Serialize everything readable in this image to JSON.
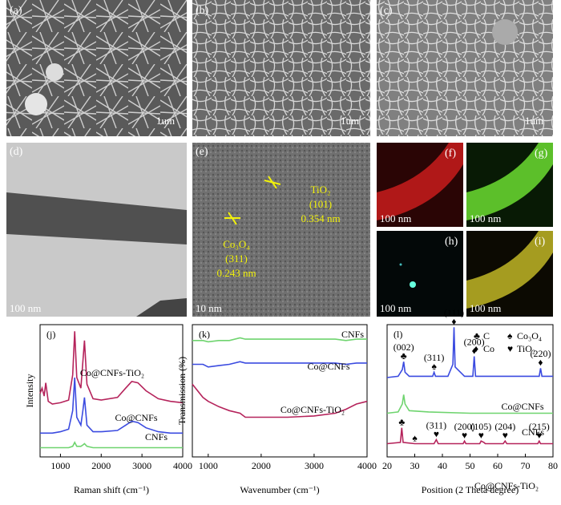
{
  "image_panels": [
    {
      "label": "(a)",
      "scale_bar": "1um"
    },
    {
      "label": "(b)",
      "scale_bar": "1um"
    },
    {
      "label": "(c)",
      "scale_bar": "1um"
    },
    {
      "label": "(d)",
      "scale_bar": "100 nm"
    },
    {
      "label": "(e)",
      "scale_bar": "10 nm"
    },
    {
      "label": "(f)",
      "scale_bar": "100 nm"
    },
    {
      "label": "(g)",
      "scale_bar": "100 nm"
    },
    {
      "label": "(h)",
      "scale_bar": "100 nm"
    },
    {
      "label": "(i)",
      "scale_bar": "100 nm"
    }
  ],
  "tem_annotations": {
    "tio2": [
      "TiO₂",
      "(101)",
      "0.354 nm"
    ],
    "co3o4": [
      "Co₃O₄",
      "(311)",
      "0.243 nm"
    ]
  },
  "chart_data": [
    {
      "type": "line",
      "panel_label": "(j)",
      "xlabel": "Raman shift (cm⁻¹)",
      "ylabel": "Intensity",
      "x": [
        500,
        550,
        600,
        640,
        700,
        800,
        1000,
        1200,
        1300,
        1350,
        1400,
        1500,
        1550,
        1590,
        1650,
        1800,
        2000,
        2400,
        2600,
        2750,
        2900,
        3100,
        3400,
        3700,
        4000
      ],
      "xlim": [
        500,
        4000
      ],
      "xticks": [
        1000,
        2000,
        3000,
        4000
      ],
      "ylim": [
        0,
        100
      ],
      "series": [
        {
          "name": "CNFs",
          "color": "#6fd46f",
          "values": [
            7,
            7,
            7,
            7,
            7,
            7,
            7,
            7,
            8,
            11,
            8,
            8,
            9,
            10,
            8,
            7,
            7,
            7,
            7,
            7,
            7,
            7,
            7,
            7,
            7
          ]
        },
        {
          "name": "Co@CNFs",
          "color": "#3b4be0",
          "values": [
            18,
            18,
            18,
            18,
            18,
            18,
            19,
            21,
            35,
            60,
            30,
            24,
            35,
            45,
            24,
            19,
            19,
            20,
            24,
            27,
            26,
            22,
            19,
            18,
            18
          ]
        },
        {
          "name": "Co@CNFs-TiO₂",
          "color": "#b5235b",
          "values": [
            48,
            52,
            46,
            56,
            42,
            40,
            41,
            43,
            62,
            95,
            60,
            52,
            72,
            88,
            55,
            44,
            43,
            45,
            52,
            57,
            56,
            50,
            44,
            42,
            41
          ]
        }
      ]
    },
    {
      "type": "line",
      "panel_label": "(k)",
      "xlabel": "Wavenumber (cm⁻¹)",
      "ylabel": "Transmission (%)",
      "x": [
        700,
        900,
        1000,
        1200,
        1400,
        1600,
        1700,
        1800,
        2000,
        2500,
        3000,
        3400,
        3600,
        3800,
        4000
      ],
      "xlim": [
        700,
        4000
      ],
      "xticks": [
        1000,
        2000,
        3000,
        4000
      ],
      "ylim": [
        0,
        100
      ],
      "series": [
        {
          "name": "CNFs",
          "color": "#6fd46f",
          "values": [
            88,
            88,
            87,
            88,
            88,
            90,
            89,
            89,
            89,
            89,
            89,
            89,
            88,
            89,
            89
          ]
        },
        {
          "name": "Co@CNFs",
          "color": "#3b4be0",
          "values": [
            70,
            70,
            68,
            69,
            70,
            72,
            71,
            71,
            71,
            71,
            71,
            71,
            70,
            71,
            71
          ]
        },
        {
          "name": "Co@CNFs-TiO₂",
          "color": "#b5235b",
          "values": [
            55,
            45,
            42,
            38,
            35,
            33,
            30,
            30,
            30,
            30,
            31,
            33,
            36,
            40,
            42
          ]
        }
      ]
    },
    {
      "type": "line",
      "panel_label": "(l)",
      "xlabel": "Position (2 Theta degree)",
      "xlim": [
        20,
        80
      ],
      "xticks": [
        20,
        30,
        40,
        50,
        60,
        70,
        80
      ],
      "ylim": [
        0,
        100
      ],
      "legend_items": [
        {
          "symbol": "♣",
          "label": "C"
        },
        {
          "symbol": "♠",
          "label": "Co₃O₄"
        },
        {
          "symbol": "♦",
          "label": "Co"
        },
        {
          "symbol": "♥",
          "label": "TiO₂"
        }
      ],
      "series": [
        {
          "name": "Co@CNFs",
          "color": "#3b4be0",
          "x": [
            20,
            24,
            25.5,
            26,
            26.5,
            28,
            32,
            36.5,
            37,
            37.5,
            42,
            43.8,
            44.2,
            44.6,
            48,
            51,
            51.5,
            52,
            60,
            70,
            75,
            75.5,
            76,
            80
          ],
          "values": [
            60,
            61,
            66,
            72,
            64,
            61,
            61,
            61,
            64,
            61,
            61,
            70,
            98,
            68,
            61,
            61,
            76,
            61,
            61,
            61,
            61,
            67,
            61,
            61
          ],
          "peak_labels": [
            null,
            null,
            null,
            "(002)",
            null,
            null,
            null,
            null,
            "(311)",
            null,
            null,
            null,
            "(111)",
            null,
            null,
            null,
            "(200)",
            null,
            null,
            null,
            null,
            "(220)",
            null,
            null
          ],
          "peak_symbols": [
            null,
            null,
            null,
            "♣",
            null,
            null,
            null,
            null,
            "♠",
            null,
            null,
            null,
            "♦",
            null,
            null,
            null,
            "♦",
            null,
            null,
            null,
            null,
            "♦",
            null,
            null
          ]
        },
        {
          "name": "CNFs",
          "color": "#6fd46f",
          "x": [
            20,
            24,
            25.5,
            26,
            26.5,
            28,
            35,
            50,
            60,
            80
          ],
          "values": [
            33,
            34,
            40,
            47,
            40,
            35,
            34,
            33,
            33,
            33
          ]
        },
        {
          "name": "Co@CNFs-TiO₂",
          "color": "#b5235b",
          "x": [
            20,
            24.8,
            25.3,
            25.8,
            30,
            37,
            37.8,
            38.5,
            47.5,
            48,
            48.5,
            53.5,
            54,
            55,
            55.5,
            62,
            62.7,
            63.3,
            74.5,
            75,
            75.5,
            80
          ],
          "values": [
            10,
            11,
            22,
            11,
            10,
            10,
            13,
            10,
            10,
            12,
            10,
            10,
            12,
            11,
            10,
            10,
            12,
            10,
            10,
            12,
            10,
            10
          ],
          "peak_labels": [
            null,
            null,
            null,
            null,
            null,
            null,
            "(311)",
            null,
            null,
            "(200)",
            null,
            null,
            "(105)",
            null,
            null,
            null,
            "(204)",
            null,
            null,
            "(215)",
            null,
            null
          ],
          "peak_symbols": [
            null,
            null,
            "♣",
            null,
            "♠",
            null,
            "♥",
            null,
            null,
            "♥",
            null,
            null,
            "♥",
            null,
            null,
            null,
            "♥",
            null,
            null,
            "♥",
            null,
            null
          ]
        }
      ]
    }
  ]
}
